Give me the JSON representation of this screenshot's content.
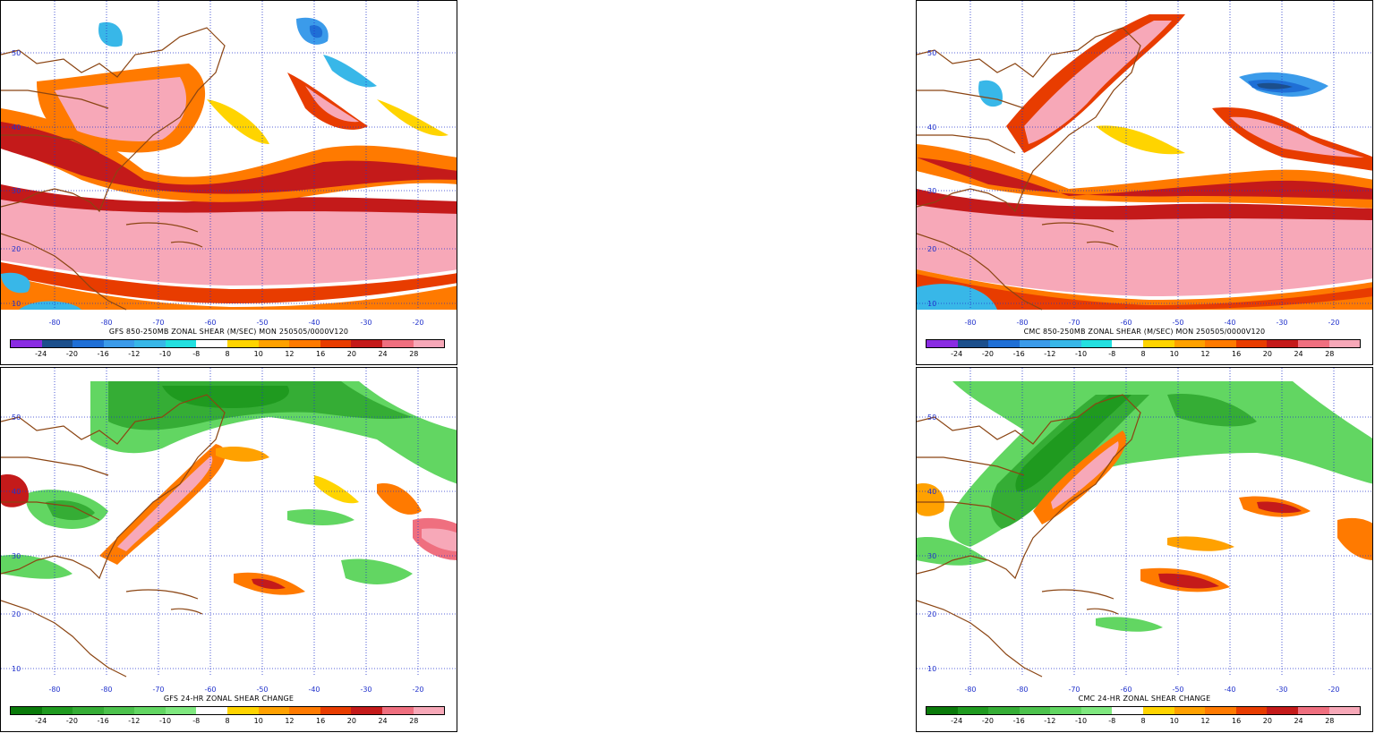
{
  "panels": [
    {
      "id": "gfs-shear",
      "caption": "GFS 850-250MB ZONAL SHEAR (M/SEC) MON 250505/0000V120",
      "lat_labels": [
        "50",
        "40",
        "30",
        "20",
        "10"
      ],
      "lon_labels": [
        "-80",
        "-80",
        "-70",
        "-60",
        "-50",
        "-40",
        "-30",
        "-20"
      ],
      "legend_labels": [
        "-24",
        "-20",
        "-16",
        "-12",
        "-10",
        "-8",
        "8",
        "10",
        "12",
        "16",
        "20",
        "24",
        "28"
      ],
      "legend_colors": [
        "#8a2be2",
        "#1c4f8c",
        "#1f6fd6",
        "#3b9bea",
        "#38b7e8",
        "#22e0e0",
        "#ffffff",
        "#ffd400",
        "#ffa100",
        "#ff7a00",
        "#e83c00",
        "#c41a1a",
        "#ef6f7f",
        "#f7a8b8"
      ],
      "kind": "shear"
    },
    {
      "id": "cmc-shear",
      "caption": "CMC 850-250MB ZONAL SHEAR (M/SEC) MON 250505/0000V120",
      "lat_labels": [
        "50",
        "40",
        "30",
        "20",
        "10"
      ],
      "lon_labels": [
        "-80",
        "-80",
        "-70",
        "-60",
        "-50",
        "-40",
        "-30",
        "-20"
      ],
      "legend_labels": [
        "-24",
        "-20",
        "-16",
        "-12",
        "-10",
        "-8",
        "8",
        "10",
        "12",
        "16",
        "20",
        "24",
        "28"
      ],
      "legend_colors": [
        "#8a2be2",
        "#1c4f8c",
        "#1f6fd6",
        "#3b9bea",
        "#38b7e8",
        "#22e0e0",
        "#ffffff",
        "#ffd400",
        "#ffa100",
        "#ff7a00",
        "#e83c00",
        "#c41a1a",
        "#ef6f7f",
        "#f7a8b8"
      ],
      "kind": "shear"
    },
    {
      "id": "gfs-change",
      "caption": "GFS 24-HR ZONAL SHEAR CHANGE",
      "lat_labels": [
        "50",
        "40",
        "30",
        "20",
        "10"
      ],
      "lon_labels": [
        "-80",
        "-80",
        "-70",
        "-60",
        "-50",
        "-40",
        "-30",
        "-20"
      ],
      "legend_labels": [
        "-24",
        "-20",
        "-16",
        "-12",
        "-10",
        "-8",
        "8",
        "10",
        "12",
        "16",
        "20",
        "24",
        "28"
      ],
      "legend_colors": [
        "#0a7a0a",
        "#1f9a1f",
        "#35ad35",
        "#4cc24c",
        "#62d662",
        "#7fe87f",
        "#ffffff",
        "#ffd400",
        "#ffa100",
        "#ff7a00",
        "#e83c00",
        "#c41a1a",
        "#ef6f7f",
        "#f7a8b8"
      ],
      "kind": "change"
    },
    {
      "id": "cmc-change",
      "caption": "CMC 24-HR ZONAL SHEAR CHANGE",
      "lat_labels": [
        "50",
        "40",
        "30",
        "20",
        "10"
      ],
      "lon_labels": [
        "-80",
        "-80",
        "-70",
        "-60",
        "-50",
        "-40",
        "-30",
        "-20"
      ],
      "legend_labels": [
        "-24",
        "-20",
        "-16",
        "-12",
        "-10",
        "-8",
        "8",
        "10",
        "12",
        "16",
        "20",
        "24",
        "28"
      ],
      "legend_colors": [
        "#0a7a0a",
        "#1f9a1f",
        "#35ad35",
        "#4cc24c",
        "#62d662",
        "#7fe87f",
        "#ffffff",
        "#ffd400",
        "#ffa100",
        "#ff7a00",
        "#e83c00",
        "#c41a1a",
        "#ef6f7f",
        "#f7a8b8"
      ],
      "kind": "change"
    }
  ]
}
